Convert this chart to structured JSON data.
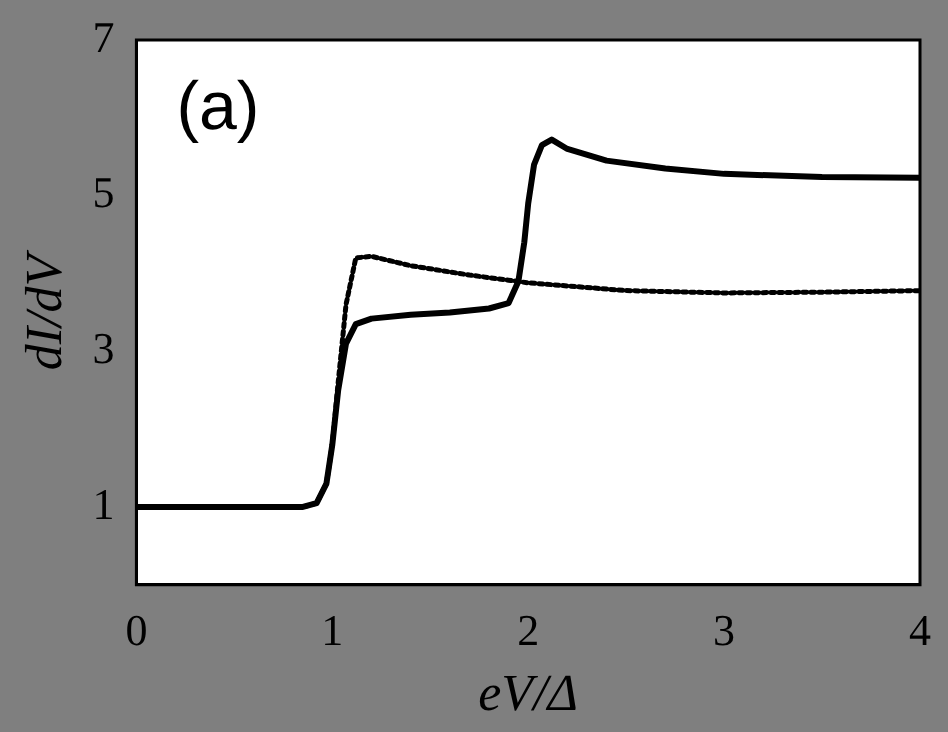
{
  "chart_data": {
    "type": "line",
    "xlabel": "eV/Δ",
    "ylabel": "dI/dV",
    "annotations": [
      "(a)"
    ],
    "xlim": [
      0,
      4
    ],
    "xticks": [
      0,
      1,
      2,
      3,
      4
    ],
    "ylim": [
      0,
      7
    ],
    "yticks": [
      1,
      3,
      5,
      7
    ],
    "grid": false,
    "legend": false,
    "marker": "none",
    "series": [
      {
        "color": "#000000",
        "line_style": "solid",
        "x": [
          0,
          0.85,
          0.92,
          0.97,
          1.0,
          1.03,
          1.07,
          1.12,
          1.2,
          1.4,
          1.6,
          1.8,
          1.9,
          1.95,
          1.98,
          2.0,
          2.03,
          2.07,
          2.12,
          2.2,
          2.4,
          2.7,
          3.0,
          3.5,
          4.0
        ],
        "values": [
          1,
          1,
          1.05,
          1.3,
          1.8,
          2.5,
          3.1,
          3.35,
          3.42,
          3.47,
          3.5,
          3.55,
          3.62,
          3.9,
          4.4,
          4.9,
          5.4,
          5.65,
          5.72,
          5.6,
          5.45,
          5.35,
          5.28,
          5.24,
          5.23
        ]
      },
      {
        "color": "#000000",
        "line_style": "dotted",
        "x": [
          0,
          0.85,
          0.92,
          0.97,
          1.0,
          1.03,
          1.07,
          1.12,
          1.2,
          1.4,
          1.7,
          2.0,
          2.5,
          3.0,
          3.5,
          4.0
        ],
        "values": [
          1,
          1,
          1.05,
          1.3,
          1.8,
          2.6,
          3.6,
          4.2,
          4.22,
          4.1,
          3.98,
          3.88,
          3.78,
          3.75,
          3.76,
          3.78
        ]
      }
    ]
  }
}
